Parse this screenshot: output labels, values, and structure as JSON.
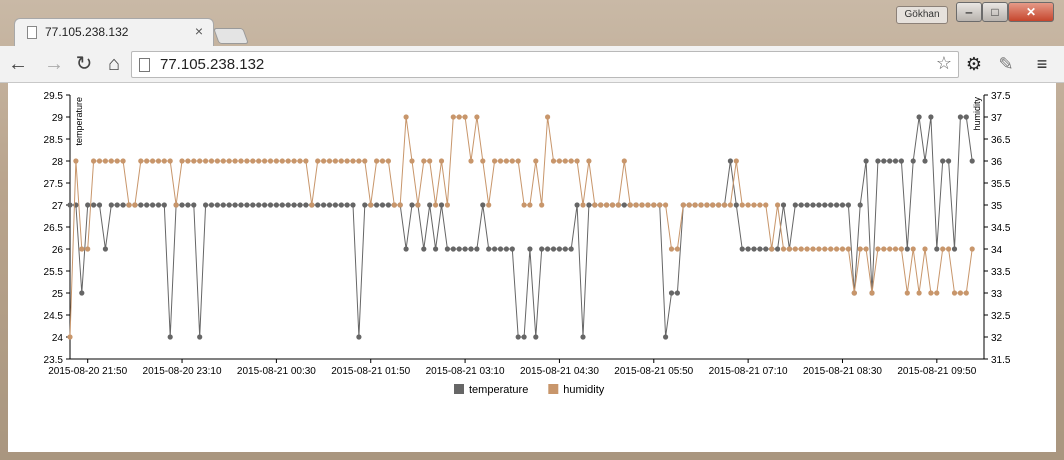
{
  "tab": {
    "title": "77.105.238.132",
    "close": "×"
  },
  "profile_name": "Gökhan",
  "window_buttons": {
    "minimize": "‒",
    "maximize": "□",
    "close": "✕"
  },
  "toolbar": {
    "back": "←",
    "forward": "→",
    "reload": "↻",
    "home": "⌂",
    "menu": "≡",
    "settings": "⚙"
  },
  "address_bar": {
    "url": "77.105.238.132"
  },
  "colors": {
    "temperature": "#666666",
    "humidity": "#c8966b",
    "grid": "#e6e6e6"
  },
  "chart_data": {
    "type": "line",
    "left_axis": {
      "label": "temperature",
      "ticks": [
        "23.5",
        "24",
        "24.5",
        "25",
        "25.5",
        "26",
        "26.5",
        "27",
        "27.5",
        "28",
        "28.5",
        "29",
        "29.5"
      ],
      "range": [
        23.5,
        29.5
      ]
    },
    "right_axis": {
      "label": "humidity",
      "ticks": [
        "31.5",
        "32",
        "32.5",
        "33",
        "33.5",
        "34",
        "34.5",
        "35",
        "35.5",
        "36",
        "36.5",
        "37",
        "37.5"
      ],
      "range": [
        31.5,
        37.5
      ]
    },
    "x_ticks": [
      "2015-08-20 21:50",
      "2015-08-20 23:10",
      "2015-08-21 00:30",
      "2015-08-21 01:50",
      "2015-08-21 03:10",
      "2015-08-21 04:30",
      "2015-08-21 05:50",
      "2015-08-21 07:10",
      "2015-08-21 08:30",
      "2015-08-21 09:50"
    ],
    "x_start": "2015-08-20 21:35",
    "x_end": "2015-08-21 10:30",
    "x_step_minutes": 5,
    "legend": {
      "placement": "bottom-center",
      "items": [
        "temperature",
        "humidity"
      ]
    },
    "series": [
      {
        "name": "temperature",
        "axis": "left",
        "values": [
          27,
          27,
          25,
          27,
          27,
          27,
          26,
          27,
          27,
          27,
          27,
          27,
          27,
          27,
          27,
          27,
          27,
          24,
          27,
          27,
          27,
          27,
          24,
          27,
          27,
          27,
          27,
          27,
          27,
          27,
          27,
          27,
          27,
          27,
          27,
          27,
          27,
          27,
          27,
          27,
          27,
          27,
          27,
          27,
          27,
          27,
          27,
          27,
          27,
          24,
          27,
          27,
          27,
          27,
          27,
          27,
          27,
          26,
          27,
          27,
          26,
          27,
          26,
          27,
          26,
          26,
          26,
          26,
          26,
          26,
          27,
          26,
          26,
          26,
          26,
          26,
          24,
          24,
          26,
          24,
          26,
          26,
          26,
          26,
          26,
          26,
          27,
          24,
          27,
          27,
          27,
          27,
          27,
          27,
          27,
          27,
          27,
          27,
          27,
          27,
          27,
          24,
          25,
          25,
          27,
          27,
          27,
          27,
          27,
          27,
          27,
          27,
          28,
          27,
          26,
          26,
          26,
          26,
          26,
          26,
          26,
          27,
          26,
          27,
          27,
          27,
          27,
          27,
          27,
          27,
          27,
          27,
          27,
          25,
          27,
          28,
          25,
          28,
          28,
          28,
          28,
          28,
          26,
          28,
          29,
          28,
          29,
          26,
          28,
          28,
          26,
          29,
          29,
          28
        ]
      },
      {
        "name": "humidity",
        "axis": "right",
        "values": [
          32,
          36,
          34,
          34,
          36,
          36,
          36,
          36,
          36,
          36,
          35,
          35,
          36,
          36,
          36,
          36,
          36,
          36,
          35,
          36,
          36,
          36,
          36,
          36,
          36,
          36,
          36,
          36,
          36,
          36,
          36,
          36,
          36,
          36,
          36,
          36,
          36,
          36,
          36,
          36,
          36,
          35,
          36,
          36,
          36,
          36,
          36,
          36,
          36,
          36,
          36,
          35,
          36,
          36,
          36,
          35,
          35,
          37,
          36,
          35,
          36,
          36,
          35,
          36,
          35,
          37,
          37,
          37,
          36,
          37,
          36,
          35,
          36,
          36,
          36,
          36,
          36,
          35,
          35,
          36,
          35,
          37,
          36,
          36,
          36,
          36,
          36,
          35,
          36,
          35,
          35,
          35,
          35,
          35,
          36,
          35,
          35,
          35,
          35,
          35,
          35,
          35,
          34,
          34,
          35,
          35,
          35,
          35,
          35,
          35,
          35,
          35,
          35,
          36,
          35,
          35,
          35,
          35,
          35,
          34,
          35,
          34,
          34,
          34,
          34,
          34,
          34,
          34,
          34,
          34,
          34,
          34,
          34,
          33,
          34,
          34,
          33,
          34,
          34,
          34,
          34,
          34,
          33,
          34,
          33,
          34,
          33,
          33,
          34,
          34,
          33,
          33,
          33,
          34
        ]
      }
    ]
  }
}
